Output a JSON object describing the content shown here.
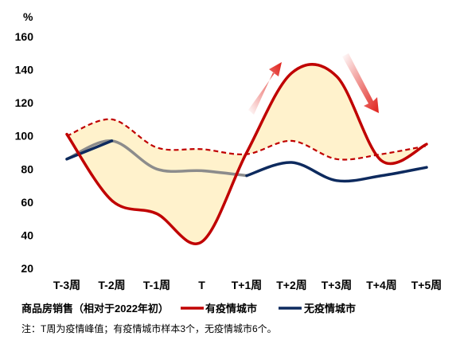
{
  "chart_data": {
    "type": "line",
    "title": "",
    "ylabel": "%",
    "xlabel": "",
    "ylim": [
      20,
      160
    ],
    "yticks": [
      20,
      40,
      60,
      80,
      100,
      120,
      140,
      160
    ],
    "categories": [
      "T-3周",
      "T-2周",
      "T-1周",
      "T",
      "T+1周",
      "T+2周",
      "T+3周",
      "T+4周",
      "T+5周"
    ],
    "legend_label": "商品房销售（相对于2022年初）",
    "series": [
      {
        "name": "有疫情城市",
        "color": "#c00000",
        "values": [
          101,
          61,
          53,
          36,
          90,
          138,
          136,
          85,
          95
        ]
      },
      {
        "name": "无疫情城市",
        "color": "#0d2a5e",
        "values": [
          86,
          97,
          80,
          79,
          76,
          84,
          73,
          76,
          81
        ]
      }
    ],
    "reference_series": [
      {
        "color": "#c00000",
        "style": "dashed",
        "values": [
          100,
          110,
          93,
          92,
          89,
          97,
          86,
          89,
          94
        ]
      }
    ],
    "band_fill_color": "#fff2cc",
    "gray_segment_color": "#8c8c8c",
    "legend_position": "bottom",
    "annotations": {
      "arrows": [
        {
          "direction": "up",
          "color": "#e0201a"
        },
        {
          "direction": "down",
          "color": "#e0201a"
        }
      ]
    },
    "note": "注：T周为疫情峰值；有疫情城市样本3个，无疫情城市6个。"
  }
}
